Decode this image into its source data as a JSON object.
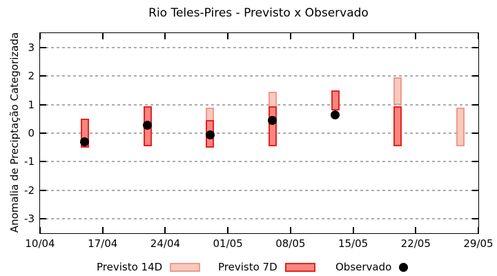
{
  "chart_data": {
    "type": "bar",
    "subtype": "forecast-range-candlesticks-with-observations",
    "title": "Rio Teles-Pires - Previsto x Observado",
    "xlabel": "",
    "ylabel": "Anomalia de Preciptação Categorizada",
    "ylim": [
      -3.5,
      3.5
    ],
    "y_ticks": [
      3,
      2,
      1,
      0,
      -1,
      -2,
      -3
    ],
    "grid": "horizontal dotted",
    "grid_color": "#ababab",
    "x_range_days": [
      0,
      49
    ],
    "x_ticks": {
      "labels": [
        "10/04",
        "17/04",
        "24/04",
        "01/05",
        "08/05",
        "15/05",
        "22/05",
        "29/05"
      ],
      "days": [
        0,
        7,
        14,
        21,
        28,
        35,
        42,
        49
      ]
    },
    "legend_position": "bottom",
    "series": [
      {
        "id": "previsto14",
        "name": "Previsto 14D",
        "marker": "bar-range",
        "fill": "#f8c9be",
        "border": "#f09a8c"
      },
      {
        "id": "previsto7",
        "name": "Previsto 7D",
        "marker": "bar-range",
        "fill": "#f8867f",
        "border": "#e62222"
      },
      {
        "id": "observado",
        "name": "Observado",
        "marker": "filled-circle",
        "color": "#000000"
      }
    ],
    "groups": [
      {
        "date": "15/04",
        "day": 5,
        "previsto14": null,
        "previsto7": {
          "high": 0.5,
          "low": -0.5
        },
        "observado": -0.3
      },
      {
        "date": "22/04",
        "day": 12,
        "previsto14": null,
        "previsto7": {
          "high": 0.95,
          "low": -0.45
        },
        "observado": 0.28
      },
      {
        "date": "29/04",
        "day": 19,
        "previsto14": {
          "high": 0.9,
          "low": -0.5
        },
        "previsto7": {
          "high": 0.45,
          "low": -0.5
        },
        "observado": -0.06
      },
      {
        "date": "06/05",
        "day": 26,
        "previsto14": {
          "high": 1.45,
          "low": 0.5
        },
        "previsto7": {
          "high": 0.95,
          "low": -0.45
        },
        "observado": 0.45
      },
      {
        "date": "13/05",
        "day": 33,
        "previsto14": null,
        "previsto7": {
          "high": 1.5,
          "low": 0.8
        },
        "observado": 0.63
      },
      {
        "date": "20/05",
        "day": 40,
        "previsto14": {
          "high": 1.95,
          "low": 1.0
        },
        "previsto7": {
          "high": 0.95,
          "low": -0.45
        },
        "observado": null
      },
      {
        "date": "27/05",
        "day": 47,
        "previsto14": {
          "high": 0.9,
          "low": -0.45
        },
        "previsto7": null,
        "observado": null
      }
    ]
  }
}
